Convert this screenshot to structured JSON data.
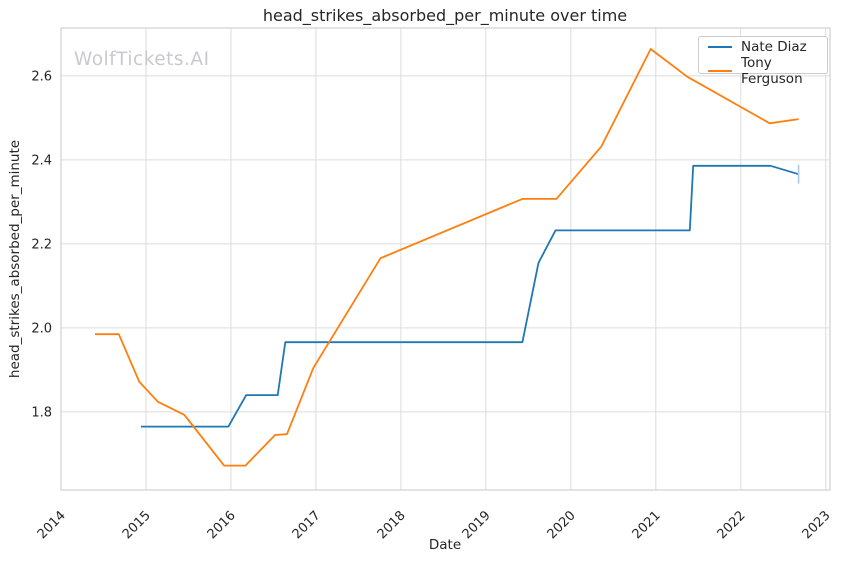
{
  "watermark": "WolfTickets.AI",
  "chart_data": {
    "type": "line",
    "title": "head_strikes_absorbed_per_minute over time",
    "xlabel": "Date",
    "ylabel": "head_strikes_absorbed_per_minute",
    "x_ticks": [
      2014,
      2015,
      2016,
      2017,
      2018,
      2019,
      2020,
      2021,
      2022,
      2023
    ],
    "y_ticks": [
      1.8,
      2.0,
      2.2,
      2.4,
      2.6
    ],
    "xlim": [
      2014.0,
      2023.05
    ],
    "ylim": [
      1.614,
      2.714
    ],
    "grid": true,
    "grid_color": "#dcdcdc",
    "spine_color": "#d0d0d0",
    "background": "#ffffff",
    "legend_position": "upper right",
    "series": [
      {
        "name": "Nate Diaz",
        "color": "#1f77b4",
        "x": [
          2014.94,
          2015.97,
          2016.18,
          2016.55,
          2016.64,
          2019.43,
          2019.62,
          2019.82,
          2021.4,
          2021.44,
          2022.35,
          2022.68
        ],
        "y": [
          1.765,
          1.765,
          1.84,
          1.84,
          1.966,
          1.966,
          2.155,
          2.232,
          2.232,
          2.386,
          2.386,
          2.366
        ],
        "end_tick": true,
        "end_tick_color": "#a9cbe4"
      },
      {
        "name": "Tony Ferguson",
        "color": "#ff7f0e",
        "x": [
          2014.4,
          2014.68,
          2014.92,
          2015.14,
          2015.45,
          2015.49,
          2015.92,
          2016.17,
          2016.52,
          2016.66,
          2016.97,
          2017.76,
          2019.43,
          2019.83,
          2020.36,
          2020.94,
          2021.37,
          2022.34,
          2022.68
        ],
        "y": [
          1.985,
          1.985,
          1.872,
          1.824,
          1.793,
          1.783,
          1.672,
          1.672,
          1.745,
          1.747,
          1.905,
          2.166,
          2.307,
          2.307,
          2.432,
          2.664,
          2.598,
          2.487,
          2.497
        ],
        "end_tick": false
      }
    ]
  }
}
